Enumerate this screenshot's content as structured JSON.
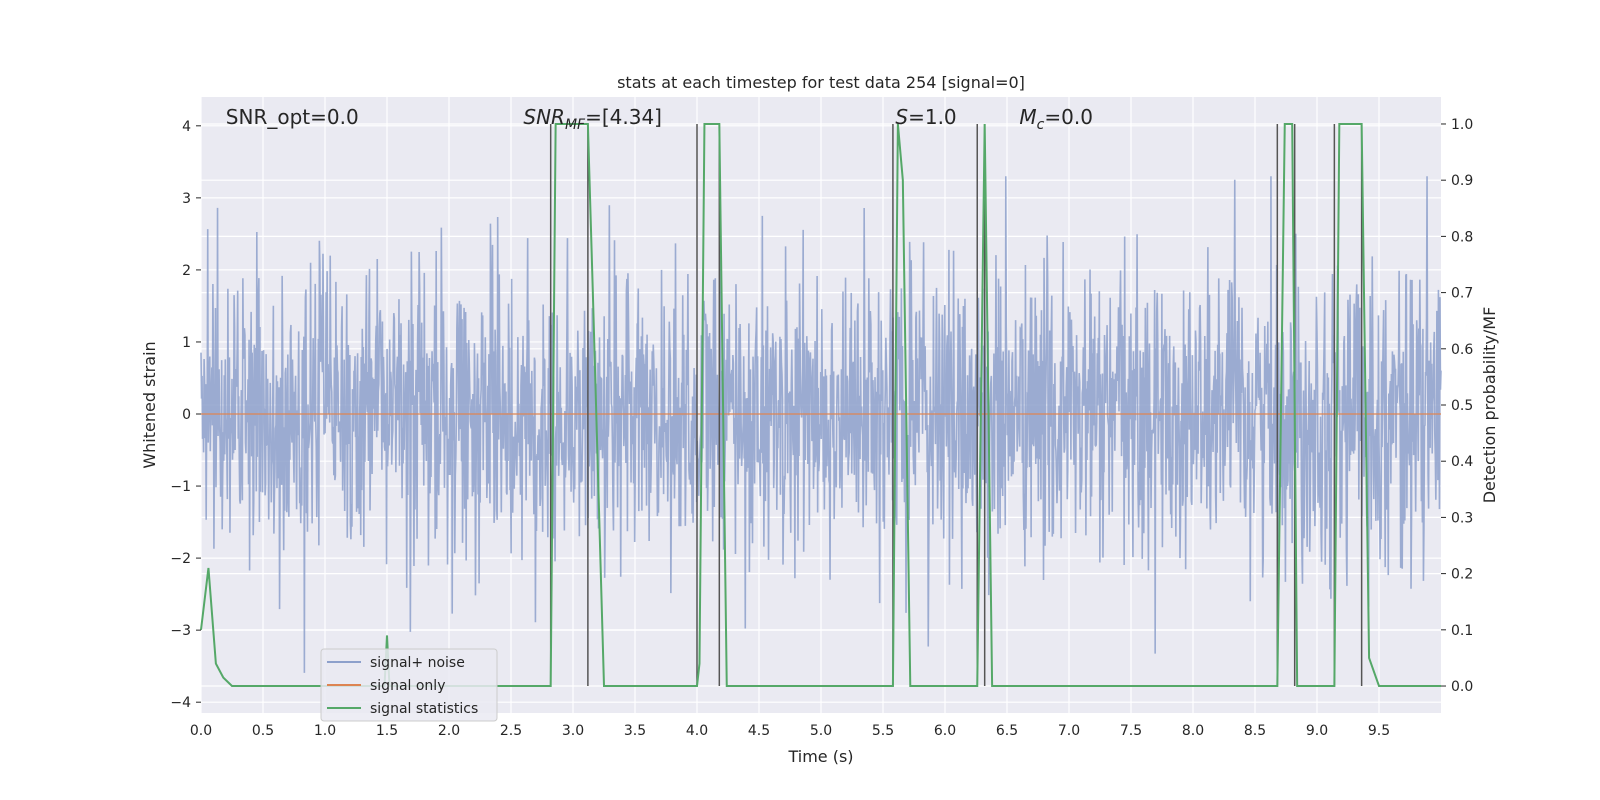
{
  "chart_data": {
    "type": "line",
    "title": "stats at each timestep for test data 254 [signal=0]",
    "xlabel": "Time (s)",
    "ylabel": "Whitened strain",
    "y2label": "Detection probability/MF",
    "xlim": [
      0.0,
      10.0
    ],
    "ylim": [
      -4.15,
      4.4
    ],
    "y2lim": [
      -0.048,
      1.048
    ],
    "xticks": [
      "0.0",
      "0.5",
      "1.0",
      "1.5",
      "2.0",
      "2.5",
      "3.0",
      "3.5",
      "4.0",
      "4.5",
      "5.0",
      "5.5",
      "6.0",
      "6.5",
      "7.0",
      "7.5",
      "8.0",
      "8.5",
      "9.0",
      "9.5"
    ],
    "yticks": [
      "−4",
      "−3",
      "−2",
      "−1",
      "0",
      "1",
      "2",
      "3",
      "4"
    ],
    "y2ticks": [
      "0.0",
      "0.1",
      "0.2",
      "0.3",
      "0.4",
      "0.5",
      "0.6",
      "0.7",
      "0.8",
      "0.9",
      "1.0"
    ],
    "grid": true,
    "legend": "lower-left",
    "annotations": [
      {
        "text": "SNR_opt=0.0",
        "x": 0.2
      },
      {
        "text": "SNR",
        "sub": "MF",
        "rest": "=[4.34]",
        "x": 2.6
      },
      {
        "text": "S",
        "rest": "=1.0",
        "x": 5.6
      },
      {
        "text": "M",
        "sub": "c",
        "rest": "=0.0",
        "x": 6.6
      }
    ],
    "series": [
      {
        "name": "signal+ noise",
        "color": "#8da0cb",
        "kind": "noise",
        "amplitude_envelope": [
          -4.0,
          3.3
        ]
      },
      {
        "name": "signal only",
        "color": "#dd8452",
        "values": [
          0.0,
          0.0
        ],
        "x": [
          0.0,
          10.0
        ]
      },
      {
        "name": "signal statistics",
        "color": "#55a868",
        "x": [
          0.0,
          0.06,
          0.12,
          0.18,
          0.25,
          1.48,
          1.5,
          1.52,
          2.82,
          2.86,
          3.12,
          3.16,
          3.25,
          4.0,
          4.02,
          4.06,
          4.18,
          4.24,
          5.58,
          5.62,
          5.66,
          5.72,
          5.78,
          6.26,
          6.32,
          6.38,
          8.68,
          8.74,
          8.8,
          8.84,
          9.14,
          9.18,
          9.36,
          9.42,
          9.5,
          10.0
        ],
        "values": [
          0.1,
          0.21,
          0.04,
          0.015,
          0.0,
          0.0,
          0.09,
          0.0,
          0.0,
          1.0,
          1.0,
          0.7,
          0.0,
          0.0,
          0.04,
          1.0,
          1.0,
          0.0,
          0.0,
          1.0,
          0.9,
          0.0,
          0.0,
          0.0,
          1.0,
          0.0,
          0.0,
          1.0,
          1.0,
          0.0,
          0.0,
          1.0,
          1.0,
          0.05,
          0.0,
          0.0
        ]
      }
    ],
    "mf_markers": {
      "color": "#555555",
      "x": [
        2.82,
        3.12,
        4.0,
        4.18,
        5.58,
        6.26,
        6.32,
        8.68,
        8.82,
        9.14,
        9.36
      ],
      "y_top": 1.0,
      "y_bottom": 0.0
    }
  }
}
